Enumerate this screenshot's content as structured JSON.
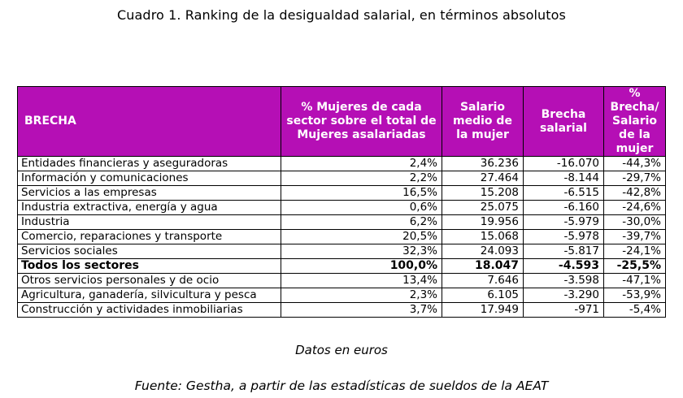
{
  "title": "Cuadro 1. Ranking de la desigualdad salarial, en términos absolutos",
  "table": {
    "headers": [
      "BRECHA",
      "% Mujeres de cada sector sobre el total de Mujeres asalariadas",
      "Salario medio de la mujer",
      "Brecha salarial",
      "% Brecha/ Salario de la mujer"
    ],
    "header_color": "#b50fb5",
    "rows": [
      [
        "Entidades financieras y aseguradoras",
        "2,4%",
        "36.236",
        "-16.070",
        "-44,3%"
      ],
      [
        "Información y comunicaciones",
        "2,2%",
        "27.464",
        "-8.144",
        "-29,7%"
      ],
      [
        "Servicios a las empresas",
        "16,5%",
        "15.208",
        "-6.515",
        "-42,8%"
      ],
      [
        "Industria extractiva, energía y agua",
        "0,6%",
        "25.075",
        "-6.160",
        "-24,6%"
      ],
      [
        "Industria",
        "6,2%",
        "19.956",
        "-5.979",
        "-30,0%"
      ],
      [
        "Comercio, reparaciones y transporte",
        "20,5%",
        "15.068",
        "-5.978",
        "-39,7%"
      ],
      [
        "Servicios sociales",
        "32,3%",
        "24.093",
        "-5.817",
        "-24,1%"
      ],
      [
        "Todos los sectores",
        "100,0%",
        "18.047",
        "-4.593",
        "-25,5%"
      ],
      [
        "Otros servicios personales y de ocio",
        "13,4%",
        "7.646",
        "-3.598",
        "-47,1%"
      ],
      [
        "Agricultura, ganadería, silvicultura y pesca",
        "2,3%",
        "6.105",
        "-3.290",
        "-53,9%"
      ],
      [
        "Construcción y actividades inmobiliarias",
        "3,7%",
        "17.949",
        "-971",
        "-5,4%"
      ]
    ]
  },
  "note": "Datos en euros",
  "source": "Fuente: Gestha, a partir de las estadísticas de sueldos de la AEAT"
}
